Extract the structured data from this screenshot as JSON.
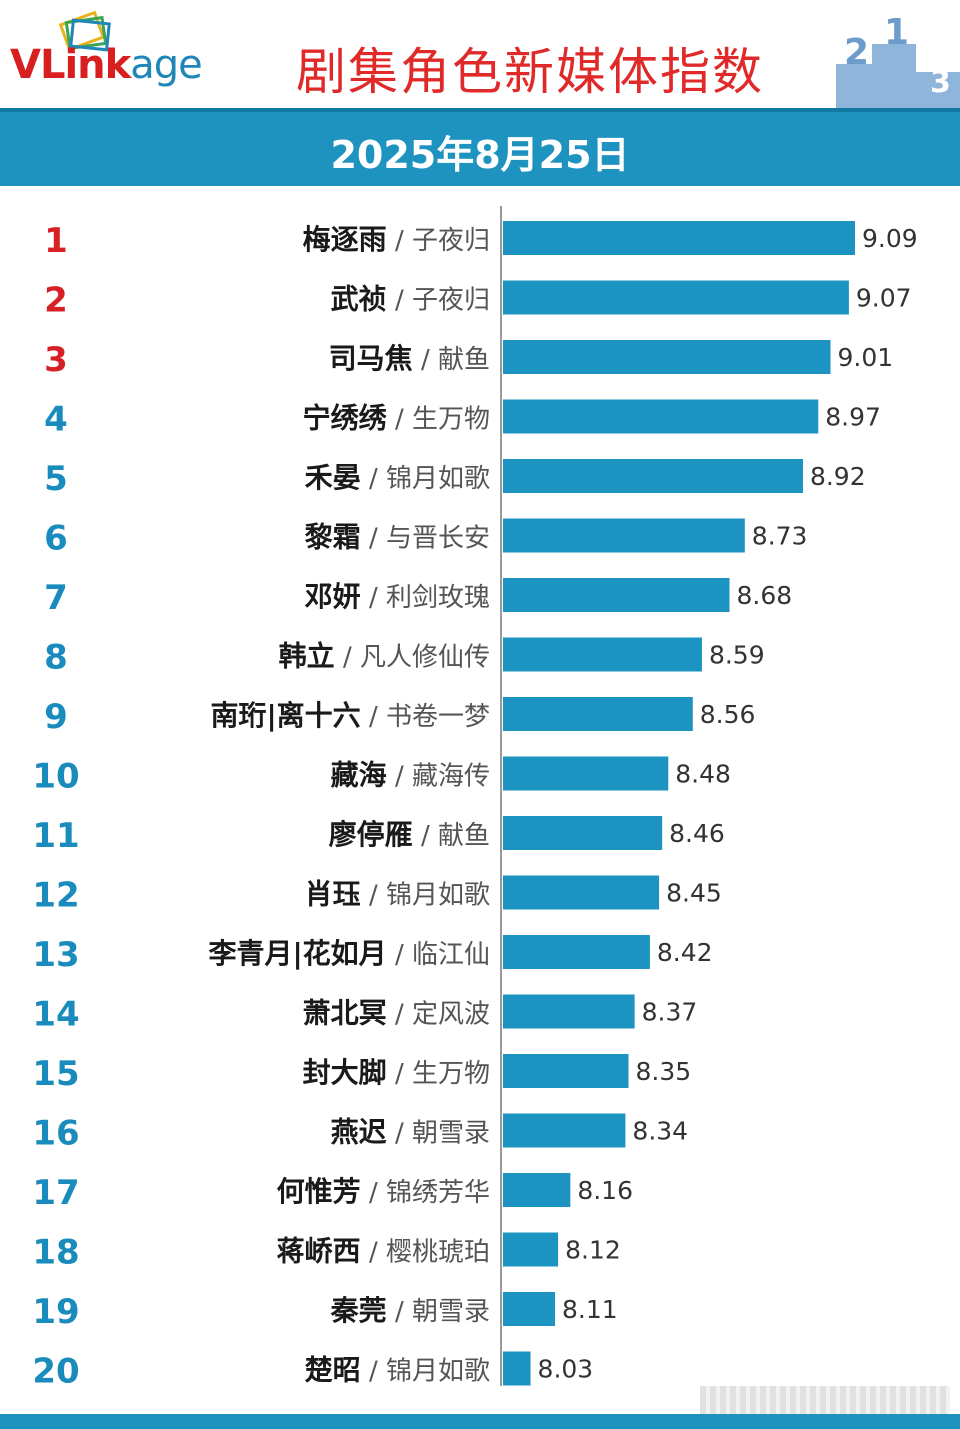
{
  "header": {
    "logo_text_main": "VLink",
    "logo_text_suffix": "age",
    "title": "剧集角色新媒体指数",
    "podium_numbers": [
      "2",
      "1",
      "3"
    ],
    "date": "2025年8月25日"
  },
  "colors": {
    "bar": "#1d93c1",
    "rank_top": "#d71f26",
    "rank_other": "#1a8bbd",
    "title": "#e02a2a",
    "band": "#1f93c0"
  },
  "chart_data": {
    "type": "bar",
    "orientation": "horizontal",
    "title": "剧集角色新媒体指数",
    "subtitle": "2025年8月25日",
    "xlim": [
      7.94,
      9.26
    ],
    "grid": false,
    "legend": "none",
    "ranks": [
      "1",
      "2",
      "3",
      "4",
      "5",
      "6",
      "7",
      "8",
      "9",
      "10",
      "11",
      "12",
      "13",
      "14",
      "15",
      "16",
      "17",
      "18",
      "19",
      "20"
    ],
    "characters": [
      "梅逐雨",
      "武祯",
      "司马焦",
      "宁绣绣",
      "禾晏",
      "黎霜",
      "邓妍",
      "韩立",
      "南珩|离十六",
      "藏海",
      "廖停雁",
      "肖珏",
      "李青月|花如月",
      "萧北冥",
      "封大脚",
      "燕迟",
      "何惟芳",
      "蒋峤西",
      "秦莞",
      "楚昭"
    ],
    "dramas": [
      "子夜归",
      "子夜归",
      "献鱼",
      "生万物",
      "锦月如歌",
      "与晋长安",
      "利剑玫瑰",
      "凡人修仙传",
      "书卷一梦",
      "藏海传",
      "献鱼",
      "锦月如歌",
      "临江仙",
      "定风波",
      "生万物",
      "朝雪录",
      "锦绣芳华",
      "樱桃琥珀",
      "朝雪录",
      "锦月如歌"
    ],
    "values": [
      9.09,
      9.07,
      9.01,
      8.97,
      8.92,
      8.73,
      8.68,
      8.59,
      8.56,
      8.48,
      8.46,
      8.45,
      8.42,
      8.37,
      8.35,
      8.34,
      8.16,
      8.12,
      8.11,
      8.03
    ],
    "value_labels": [
      "9.09",
      "9.07",
      "9.01",
      "8.97",
      "8.92",
      "8.73",
      "8.68",
      "8.59",
      "8.56",
      "8.48",
      "8.46",
      "8.45",
      "8.42",
      "8.37",
      "8.35",
      "8.34",
      "8.16",
      "8.12",
      "8.11",
      "8.03"
    ],
    "separator": " / "
  }
}
